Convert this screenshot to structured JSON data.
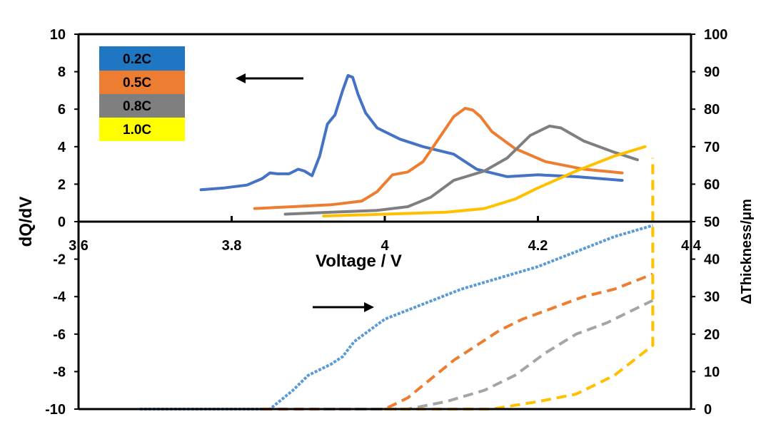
{
  "chart_data": {
    "type": "line",
    "title": "",
    "xlabel": "Voltage / V",
    "ylabel": "dQ/dV",
    "y2label": "ΔThickness/μm",
    "xlim": [
      3.6,
      4.4
    ],
    "ylim": [
      -10,
      10
    ],
    "y2lim": [
      0,
      100
    ],
    "x_ticks": [
      "3.6",
      "3.8",
      "4",
      "4.2",
      "4.4"
    ],
    "x_tick_values": [
      3.6,
      3.8,
      4.0,
      4.2,
      4.4
    ],
    "y_ticks": [
      "10",
      "8",
      "6",
      "4",
      "2",
      "0",
      "-2",
      "-4",
      "-6",
      "-8",
      "-10"
    ],
    "y_tick_values": [
      10,
      8,
      6,
      4,
      2,
      0,
      -2,
      -4,
      -6,
      -8,
      -10
    ],
    "y2_ticks": [
      "100",
      "90",
      "80",
      "70",
      "60",
      "50",
      "40",
      "30",
      "20",
      "10",
      "0"
    ],
    "y2_tick_values": [
      100,
      90,
      80,
      70,
      60,
      50,
      40,
      30,
      20,
      10,
      0
    ],
    "legend": {
      "position": "top-left",
      "entries": [
        {
          "label": "0.2C",
          "color": "#1f77c4"
        },
        {
          "label": "0.5C",
          "color": "#ed7d31"
        },
        {
          "label": "0.8C",
          "color": "#7f7f7f"
        },
        {
          "label": "1.0C",
          "color": "#ffff00"
        }
      ]
    },
    "annotations": [
      {
        "type": "arrow",
        "direction": "left",
        "meaning": "dQ/dV curves read on left axis"
      },
      {
        "type": "arrow",
        "direction": "right",
        "meaning": "thickness curves read on right axis"
      }
    ],
    "series": [
      {
        "name": "0.2C dQ/dV",
        "axis": "left",
        "style": "solid",
        "color": "#4472c4",
        "x": [
          3.76,
          3.79,
          3.82,
          3.84,
          3.85,
          3.86,
          3.875,
          3.887,
          3.895,
          3.905,
          3.915,
          3.925,
          3.935,
          3.945,
          3.952,
          3.958,
          3.965,
          3.975,
          3.99,
          4.02,
          4.05,
          4.09,
          4.12,
          4.16,
          4.2,
          4.25,
          4.31
        ],
        "y": [
          1.7,
          1.8,
          1.95,
          2.3,
          2.6,
          2.55,
          2.55,
          2.8,
          2.7,
          2.45,
          3.5,
          5.2,
          5.7,
          7.0,
          7.8,
          7.7,
          6.8,
          5.8,
          5.0,
          4.4,
          4.0,
          3.6,
          2.8,
          2.4,
          2.5,
          2.4,
          2.2
        ]
      },
      {
        "name": "0.5C dQ/dV",
        "axis": "left",
        "style": "solid",
        "color": "#ed7d31",
        "x": [
          3.83,
          3.88,
          3.93,
          3.97,
          3.99,
          4.01,
          4.03,
          4.05,
          4.07,
          4.09,
          4.105,
          4.115,
          4.125,
          4.14,
          4.17,
          4.21,
          4.26,
          4.31
        ],
        "y": [
          0.7,
          0.8,
          0.9,
          1.1,
          1.6,
          2.5,
          2.65,
          3.2,
          4.4,
          5.6,
          6.05,
          5.95,
          5.6,
          4.8,
          3.9,
          3.2,
          2.8,
          2.6
        ]
      },
      {
        "name": "0.8C dQ/dV",
        "axis": "left",
        "style": "solid",
        "color": "#7f7f7f",
        "x": [
          3.87,
          3.93,
          3.99,
          4.03,
          4.06,
          4.09,
          4.13,
          4.16,
          4.19,
          4.215,
          4.23,
          4.26,
          4.3,
          4.33
        ],
        "y": [
          0.4,
          0.5,
          0.6,
          0.8,
          1.3,
          2.2,
          2.7,
          3.4,
          4.6,
          5.1,
          5.0,
          4.3,
          3.7,
          3.3
        ]
      },
      {
        "name": "1.0C dQ/dV",
        "axis": "left",
        "style": "solid",
        "color": "#ffc000",
        "x": [
          3.92,
          4.0,
          4.08,
          4.13,
          4.17,
          4.2,
          4.25,
          4.3,
          4.34
        ],
        "y": [
          0.3,
          0.4,
          0.5,
          0.7,
          1.2,
          1.8,
          2.7,
          3.5,
          4.0
        ]
      },
      {
        "name": "0.2C thickness",
        "axis": "right",
        "style": "dotted",
        "color": "#5b9bd5",
        "x": [
          3.68,
          3.85,
          3.88,
          3.9,
          3.93,
          3.945,
          3.96,
          3.98,
          4.0,
          4.05,
          4.1,
          4.15,
          4.2,
          4.25,
          4.3,
          4.35
        ],
        "y": [
          0,
          0,
          5,
          9,
          12,
          14,
          18,
          21,
          24,
          28,
          32,
          35,
          38,
          42,
          46,
          49
        ]
      },
      {
        "name": "0.5C thickness",
        "axis": "right",
        "style": "dashed",
        "color": "#ed7d31",
        "x": [
          3.84,
          4.0,
          4.03,
          4.06,
          4.09,
          4.12,
          4.15,
          4.18,
          4.22,
          4.26,
          4.3,
          4.35
        ],
        "y": [
          0,
          0,
          3,
          8,
          13,
          17,
          21,
          24,
          27,
          30,
          32,
          36
        ]
      },
      {
        "name": "0.8C thickness",
        "axis": "right",
        "style": "dashed",
        "color": "#a5a5a5",
        "x": [
          3.92,
          4.03,
          4.08,
          4.13,
          4.17,
          4.21,
          4.25,
          4.29,
          4.32,
          4.35
        ],
        "y": [
          0,
          0,
          2,
          5,
          9,
          15,
          20,
          23,
          26,
          29
        ]
      },
      {
        "name": "1.0C thickness",
        "axis": "right",
        "style": "dashed",
        "color": "#ffc000",
        "x": [
          4.0,
          4.14,
          4.2,
          4.25,
          4.3,
          4.35,
          4.35
        ],
        "y": [
          0,
          0,
          2,
          4,
          9,
          17,
          67
        ]
      }
    ]
  }
}
